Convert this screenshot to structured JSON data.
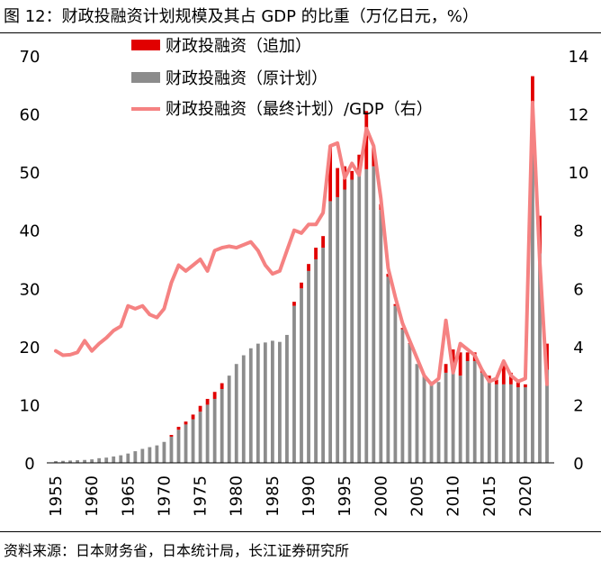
{
  "title": "图 12：财政投融资计划规模及其占 GDP 的比重（万亿日元，%）",
  "source": "资料来源：日本财务省，日本统计局，长江证券研究所",
  "colors": {
    "added": "#e10000",
    "original": "#8c8c8c",
    "ratio": "#f58282"
  },
  "chart_data": {
    "type": "bar+line",
    "title": "财政投融资计划规模及其占 GDP 的比重（万亿日元，%）",
    "x_ticks": [
      "1955",
      "1960",
      "1965",
      "1970",
      "1975",
      "1980",
      "1985",
      "1990",
      "1995",
      "2000",
      "2005",
      "2010",
      "2015",
      "2020"
    ],
    "y_left": {
      "range": [
        0,
        70
      ],
      "ticks": [
        "0",
        "10",
        "20",
        "30",
        "40",
        "50",
        "60",
        "70"
      ]
    },
    "y_right": {
      "range": [
        0,
        14
      ],
      "ticks": [
        "0",
        "2",
        "4",
        "6",
        "8",
        "10",
        "12",
        "14"
      ]
    },
    "legend": [
      "财政投融资（追加）",
      "财政投融资（原计划）",
      "财政投融资（最终计划）/GDP（右）"
    ],
    "years": [
      1955,
      1956,
      1957,
      1958,
      1959,
      1960,
      1961,
      1962,
      1963,
      1964,
      1965,
      1966,
      1967,
      1968,
      1969,
      1970,
      1971,
      1972,
      1973,
      1974,
      1975,
      1976,
      1977,
      1978,
      1979,
      1980,
      1981,
      1982,
      1983,
      1984,
      1985,
      1986,
      1987,
      1988,
      1989,
      1990,
      1991,
      1992,
      1993,
      1994,
      1995,
      1996,
      1997,
      1998,
      1999,
      2000,
      2001,
      2002,
      2003,
      2004,
      2005,
      2006,
      2007,
      2008,
      2009,
      2010,
      2011,
      2012,
      2013,
      2014,
      2015,
      2016,
      2017,
      2018,
      2019,
      2020,
      2021,
      2022,
      2023
    ],
    "series": [
      {
        "name": "财政投融资（原计划）",
        "axis": "left",
        "values": [
          0.3,
          0.35,
          0.4,
          0.45,
          0.5,
          0.6,
          0.8,
          0.9,
          1.1,
          1.3,
          1.6,
          2.0,
          2.4,
          2.7,
          3.0,
          3.6,
          4.5,
          5.7,
          6.6,
          7.5,
          8.8,
          10.0,
          11.0,
          12.7,
          15.0,
          17.0,
          18.5,
          19.7,
          20.5,
          20.7,
          21.0,
          20.8,
          22.0,
          27.0,
          30.0,
          33.0,
          35.0,
          37.0,
          45.0,
          45.7,
          47.0,
          48.7,
          50.0,
          50.5,
          51.0,
          43.5,
          32.0,
          27.0,
          23.0,
          20.5,
          17.0,
          15.0,
          14.0,
          13.9,
          15.5,
          15.5,
          15.0,
          17.5,
          17.5,
          15.5,
          14.5,
          13.5,
          13.5,
          13.5,
          13.0,
          13.0,
          58.0,
          36.0,
          16.0
        ]
      },
      {
        "name": "财政投融资（追加）",
        "axis": "left",
        "values": [
          0,
          0,
          0,
          0,
          0,
          0,
          0,
          0,
          0,
          0,
          0,
          0,
          0,
          0,
          0,
          0,
          0.3,
          0.5,
          0.5,
          0.8,
          1.0,
          1.0,
          1.2,
          1.0,
          0,
          0,
          0,
          0,
          0,
          0,
          0,
          0,
          0,
          0.7,
          1.0,
          1.2,
          2.0,
          2.0,
          9.5,
          5.0,
          4.0,
          1.5,
          3.0,
          10.0,
          3.3,
          1.0,
          0.5,
          0.3,
          0.2,
          0.1,
          0,
          0,
          0,
          0,
          1.5,
          4.0,
          4.0,
          1.5,
          1.5,
          0.5,
          0.5,
          0.8,
          4.0,
          2.0,
          1.0,
          0.5,
          8.5,
          6.5,
          4.5
        ]
      },
      {
        "name": "财政投融资（最终计划）/GDP（右）",
        "axis": "right",
        "values": [
          3.85,
          3.7,
          3.72,
          3.8,
          4.2,
          3.85,
          4.1,
          4.3,
          4.55,
          4.7,
          5.4,
          5.3,
          5.4,
          5.1,
          5.0,
          5.3,
          6.2,
          6.8,
          6.6,
          6.8,
          7.0,
          6.6,
          7.3,
          7.4,
          7.45,
          7.4,
          7.5,
          7.6,
          7.3,
          6.8,
          6.5,
          6.6,
          7.3,
          8.0,
          7.9,
          8.2,
          8.2,
          8.6,
          10.9,
          11.0,
          9.8,
          10.3,
          9.9,
          11.5,
          10.9,
          9.1,
          6.7,
          5.7,
          4.8,
          4.2,
          3.6,
          3.0,
          2.7,
          2.9,
          4.9,
          3.1,
          4.1,
          3.9,
          3.7,
          3.2,
          2.8,
          2.9,
          3.5,
          3.0,
          2.8,
          2.9,
          12.4,
          6.9,
          2.7
        ]
      }
    ]
  }
}
